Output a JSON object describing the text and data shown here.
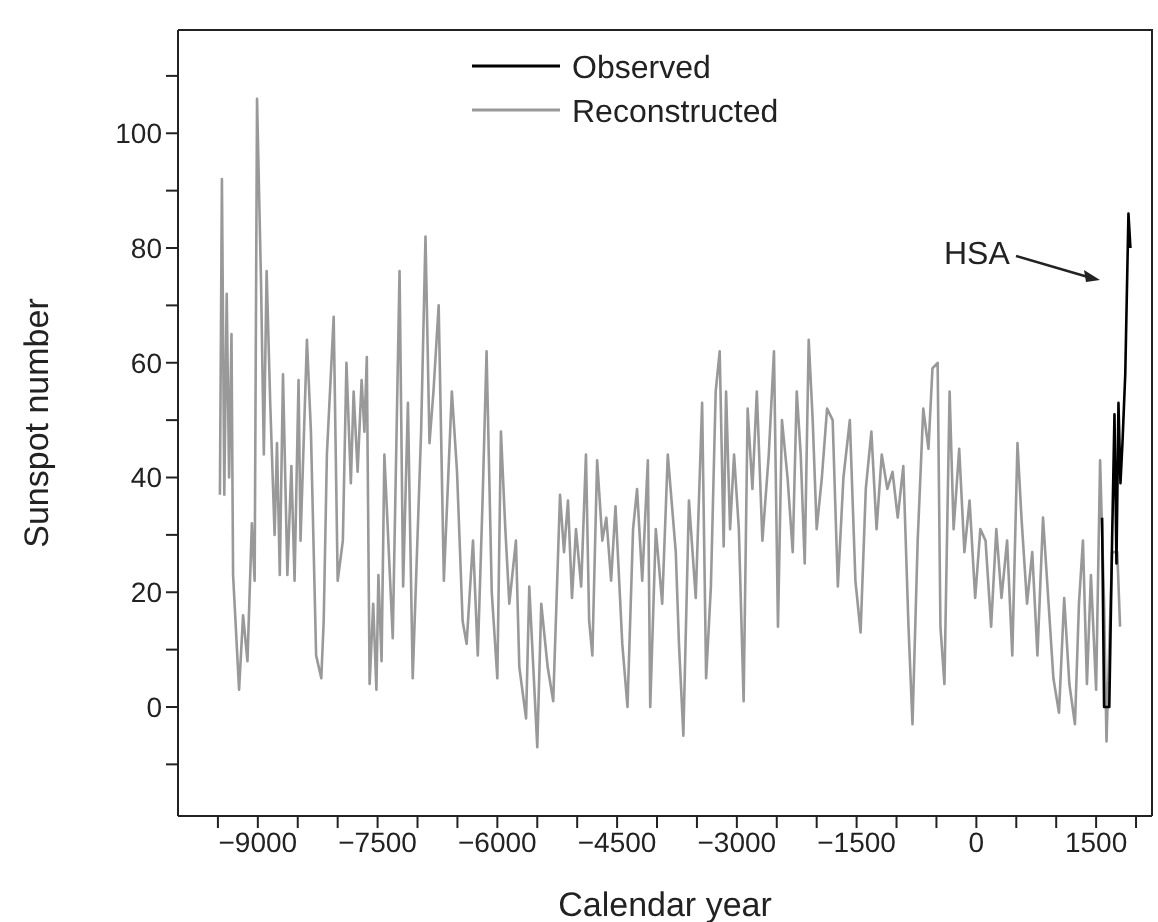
{
  "chart_data": {
    "type": "line",
    "xlabel": "Calendar year",
    "ylabel": "Sunspot number",
    "xlim": [
      -10000,
      2200
    ],
    "ylim": [
      -19,
      118
    ],
    "xticks": [
      {
        "value": -9500,
        "label": null
      },
      -9000,
      {
        "value": -8500,
        "label": null
      },
      {
        "value": -8000,
        "label": null
      },
      -7500,
      {
        "value": -7000,
        "label": null
      },
      {
        "value": -6500,
        "label": null
      },
      -6000,
      {
        "value": -5500,
        "label": null
      },
      {
        "value": -5000,
        "label": null
      },
      -4500,
      {
        "value": -4000,
        "label": null
      },
      {
        "value": -3500,
        "label": null
      },
      -3000,
      {
        "value": -2500,
        "label": null
      },
      {
        "value": -2000,
        "label": null
      },
      -1500,
      {
        "value": -1000,
        "label": null
      },
      {
        "value": -500,
        "label": null
      },
      0,
      {
        "value": 500,
        "label": null
      },
      {
        "value": 1000,
        "label": null
      },
      1500,
      {
        "value": 2000,
        "label": null
      }
    ],
    "yticks": [
      {
        "value": -10,
        "label": null
      },
      0,
      {
        "value": 10,
        "label": null
      },
      20,
      {
        "value": 30,
        "label": null
      },
      40,
      {
        "value": 50,
        "label": null
      },
      60,
      {
        "value": 70,
        "label": null
      },
      80,
      {
        "value": 90,
        "label": null
      },
      100,
      {
        "value": 110,
        "label": null
      }
    ],
    "legend": "top",
    "marker": "none",
    "line_style": "solid",
    "annotations": [
      "HSA"
    ],
    "series": [
      {
        "name": "Observed",
        "color": "#000000",
        "x": [
          1575,
          1600,
          1665,
          1700,
          1730,
          1755,
          1780,
          1805,
          1830,
          1865,
          1905,
          1930
        ],
        "values": [
          33,
          0,
          0,
          29,
          51,
          25,
          53,
          39,
          46,
          58,
          86,
          80
        ]
      },
      {
        "name": "Reconstructed",
        "color": "#999999",
        "x": [
          -9475,
          -9450,
          -9420,
          -9390,
          -9360,
          -9330,
          -9310,
          -9235,
          -9185,
          -9130,
          -9075,
          -9040,
          -9010,
          -8960,
          -8925,
          -8890,
          -8845,
          -8790,
          -8760,
          -8725,
          -8685,
          -8630,
          -8580,
          -8540,
          -8490,
          -8465,
          -8385,
          -8335,
          -8270,
          -8205,
          -8175,
          -8135,
          -8050,
          -8000,
          -7935,
          -7890,
          -7835,
          -7800,
          -7750,
          -7700,
          -7665,
          -7635,
          -7600,
          -7555,
          -7515,
          -7490,
          -7450,
          -7415,
          -7310,
          -7225,
          -7180,
          -7120,
          -7060,
          -6955,
          -6900,
          -6850,
          -6800,
          -6735,
          -6670,
          -6570,
          -6505,
          -6435,
          -6385,
          -6305,
          -6245,
          -6185,
          -6135,
          -6070,
          -6000,
          -5955,
          -5900,
          -5850,
          -5767,
          -5725,
          -5640,
          -5600,
          -5500,
          -5450,
          -5370,
          -5300,
          -5215,
          -5165,
          -5115,
          -5065,
          -5015,
          -4950,
          -4890,
          -4850,
          -4810,
          -4750,
          -4685,
          -4635,
          -4575,
          -4520,
          -4435,
          -4370,
          -4300,
          -4250,
          -4185,
          -4115,
          -4085,
          -4015,
          -3935,
          -3865,
          -3765,
          -3725,
          -3670,
          -3600,
          -3515,
          -3435,
          -3385,
          -3325,
          -3265,
          -3215,
          -3165,
          -3135,
          -3085,
          -3035,
          -2975,
          -2915,
          -2865,
          -2805,
          -2750,
          -2680,
          -2600,
          -2535,
          -2485,
          -2435,
          -2365,
          -2300,
          -2250,
          -2200,
          -2150,
          -2100,
          -2050,
          -2000,
          -1935,
          -1870,
          -1800,
          -1735,
          -1665,
          -1585,
          -1515,
          -1450,
          -1385,
          -1315,
          -1250,
          -1185,
          -1115,
          -1050,
          -985,
          -915,
          -850,
          -800,
          -735,
          -665,
          -600,
          -550,
          -485,
          -450,
          -400,
          -335,
          -285,
          -215,
          -150,
          -85,
          -15,
          50,
          115,
          185,
          250,
          315,
          385,
          450,
          515,
          565,
          635,
          700,
          765,
          835,
          900,
          965,
          1035,
          1100,
          1165,
          1235,
          1285,
          1335,
          1385,
          1435,
          1500,
          1550,
          1600,
          1630,
          1700,
          1765,
          1800
        ],
        "values": [
          37,
          92,
          37,
          72,
          40,
          65,
          23,
          3,
          16,
          8,
          32,
          22,
          106,
          74,
          44,
          76,
          53,
          30,
          46,
          23,
          58,
          23,
          42,
          22,
          57,
          29,
          64,
          48,
          9,
          5,
          15,
          44,
          68,
          22,
          29,
          60,
          39,
          55,
          41,
          57,
          48,
          61,
          4,
          18,
          3,
          23,
          8,
          44,
          12,
          76,
          21,
          53,
          5,
          48,
          82,
          46,
          55,
          70,
          22,
          55,
          41,
          15,
          11,
          29,
          9,
          36,
          62,
          20,
          5,
          48,
          31,
          18,
          29,
          7,
          -2,
          21,
          -7,
          18,
          7,
          1,
          37,
          27,
          36,
          19,
          31,
          21,
          44,
          15,
          9,
          43,
          29,
          33,
          22,
          35,
          11,
          0,
          31,
          38,
          22,
          43,
          0,
          31,
          18,
          44,
          27,
          11,
          -5,
          36,
          19,
          53,
          5,
          21,
          55,
          62,
          28,
          55,
          31,
          44,
          31,
          1,
          52,
          38,
          55,
          29,
          44,
          62,
          14,
          50,
          40,
          27,
          55,
          44,
          25,
          64,
          50,
          31,
          40,
          52,
          50,
          21,
          40,
          50,
          22,
          13,
          38,
          48,
          31,
          44,
          38,
          41,
          33,
          42,
          14,
          -3,
          29,
          52,
          45,
          59,
          60,
          14,
          4,
          55,
          31,
          45,
          27,
          36,
          19,
          31,
          29,
          14,
          31,
          19,
          29,
          9,
          46,
          33,
          18,
          27,
          9,
          33,
          19,
          5,
          -1,
          19,
          4,
          -3,
          18,
          29,
          4,
          23,
          3,
          43,
          18,
          -6,
          27,
          27,
          14
        ]
      }
    ]
  }
}
